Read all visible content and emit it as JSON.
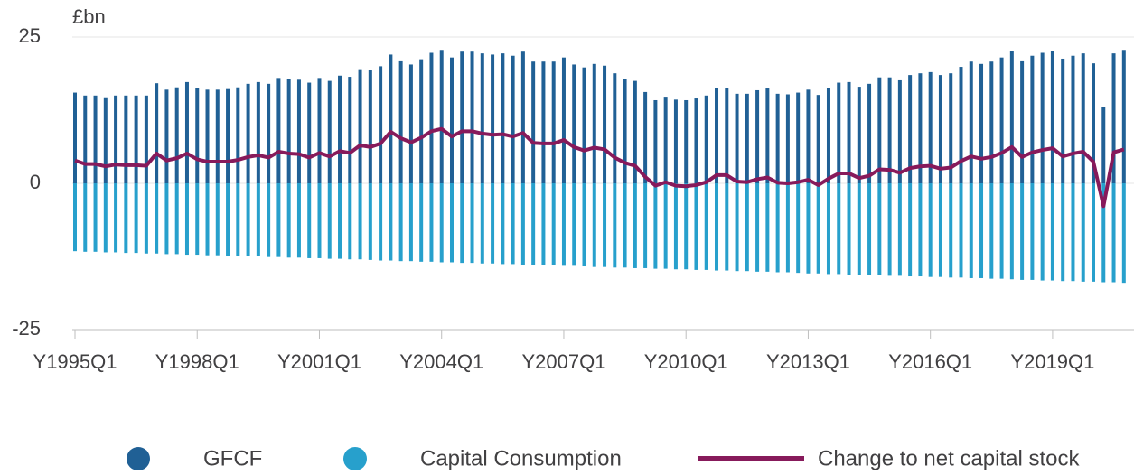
{
  "chart_data": {
    "type": "bar",
    "y_label": "£bn",
    "categories": [
      "Y1995Q1",
      null,
      null,
      null,
      null,
      null,
      null,
      null,
      null,
      null,
      null,
      null,
      "Y1998Q1",
      null,
      null,
      null,
      null,
      null,
      null,
      null,
      null,
      null,
      null,
      null,
      "Y2001Q1",
      null,
      null,
      null,
      null,
      null,
      null,
      null,
      null,
      null,
      null,
      null,
      "Y2004Q1",
      null,
      null,
      null,
      null,
      null,
      null,
      null,
      null,
      null,
      null,
      null,
      "Y2007Q1",
      null,
      null,
      null,
      null,
      null,
      null,
      null,
      null,
      null,
      null,
      null,
      "Y2010Q1",
      null,
      null,
      null,
      null,
      null,
      null,
      null,
      null,
      null,
      null,
      null,
      "Y2013Q1",
      null,
      null,
      null,
      null,
      null,
      null,
      null,
      null,
      null,
      null,
      null,
      "Y2016Q1",
      null,
      null,
      null,
      null,
      null,
      null,
      null,
      null,
      null,
      null,
      null,
      "Y2019Q1",
      null,
      null,
      null,
      null,
      null,
      null,
      null
    ],
    "series": [
      {
        "name": "GFCF",
        "type": "bar",
        "color": "#206095",
        "values": [
          15.5,
          15.0,
          15.0,
          14.7,
          15.0,
          15.0,
          15.0,
          15.0,
          17.1,
          16.0,
          16.4,
          17.3,
          16.3,
          16.0,
          16.0,
          16.1,
          16.4,
          17.0,
          17.3,
          17.0,
          18.0,
          17.8,
          17.7,
          17.2,
          18.0,
          17.5,
          18.4,
          18.2,
          19.5,
          19.3,
          20.0,
          22.0,
          21.0,
          20.3,
          21.2,
          22.3,
          22.8,
          21.5,
          22.5,
          22.5,
          22.2,
          22.0,
          22.2,
          21.8,
          22.5,
          20.8,
          20.8,
          20.8,
          21.5,
          20.3,
          19.8,
          20.4,
          20.1,
          18.8,
          17.9,
          17.5,
          15.6,
          14.2,
          14.8,
          14.3,
          14.2,
          14.5,
          15.0,
          16.3,
          16.3,
          15.3,
          15.3,
          15.9,
          16.2,
          15.3,
          15.2,
          15.5,
          16.0,
          15.1,
          16.3,
          17.2,
          17.3,
          16.5,
          17.0,
          18.1,
          18.1,
          17.6,
          18.5,
          18.8,
          19.0,
          18.5,
          18.8,
          19.9,
          20.8,
          20.4,
          20.8,
          21.5,
          22.6,
          21.0,
          21.8,
          22.3,
          22.6,
          21.3,
          21.8,
          22.2,
          20.5,
          13.0,
          22.2,
          22.8
        ]
      },
      {
        "name": "Capital Consumption",
        "type": "bar",
        "color": "#27a0cc",
        "values": [
          -11.6,
          -11.7,
          -11.7,
          -11.8,
          -11.8,
          -11.9,
          -11.9,
          -12.0,
          -12.0,
          -12.1,
          -12.1,
          -12.2,
          -12.2,
          -12.3,
          -12.3,
          -12.4,
          -12.4,
          -12.5,
          -12.5,
          -12.6,
          -12.6,
          -12.7,
          -12.7,
          -12.8,
          -12.8,
          -12.9,
          -12.9,
          -13.0,
          -13.0,
          -13.1,
          -13.2,
          -13.2,
          -13.3,
          -13.3,
          -13.4,
          -13.4,
          -13.5,
          -13.5,
          -13.6,
          -13.6,
          -13.7,
          -13.7,
          -13.8,
          -13.8,
          -13.9,
          -13.9,
          -14.0,
          -14.0,
          -14.1,
          -14.1,
          -14.2,
          -14.3,
          -14.3,
          -14.4,
          -14.4,
          -14.5,
          -14.5,
          -14.6,
          -14.6,
          -14.7,
          -14.7,
          -14.8,
          -14.8,
          -14.9,
          -14.9,
          -15.0,
          -15.0,
          -15.1,
          -15.1,
          -15.2,
          -15.2,
          -15.3,
          -15.4,
          -15.4,
          -15.5,
          -15.5,
          -15.6,
          -15.6,
          -15.7,
          -15.7,
          -15.8,
          -15.8,
          -15.9,
          -15.9,
          -16.0,
          -16.0,
          -16.1,
          -16.1,
          -16.2,
          -16.2,
          -16.3,
          -16.3,
          -16.4,
          -16.5,
          -16.5,
          -16.6,
          -16.6,
          -16.7,
          -16.7,
          -16.8,
          -16.8,
          -16.9,
          -16.9,
          -17.0
        ]
      },
      {
        "name": "Change to net capital stock",
        "type": "line",
        "color": "#871a5b",
        "values": [
          3.9,
          3.3,
          3.3,
          2.9,
          3.2,
          3.1,
          3.1,
          3.0,
          5.1,
          3.9,
          4.3,
          5.1,
          4.1,
          3.7,
          3.7,
          3.7,
          4.0,
          4.5,
          4.8,
          4.4,
          5.4,
          5.1,
          5.0,
          4.4,
          5.2,
          4.6,
          5.5,
          5.2,
          6.5,
          6.2,
          6.8,
          8.8,
          7.7,
          7.0,
          7.8,
          8.9,
          9.3,
          8.0,
          8.9,
          8.9,
          8.5,
          8.3,
          8.4,
          8.0,
          8.6,
          6.9,
          6.8,
          6.8,
          7.4,
          6.2,
          5.6,
          6.1,
          5.8,
          4.4,
          3.5,
          3.0,
          1.1,
          -0.4,
          0.2,
          -0.4,
          -0.5,
          -0.3,
          0.2,
          1.4,
          1.4,
          0.3,
          0.2,
          0.7,
          1.0,
          0.1,
          0.0,
          0.2,
          0.6,
          -0.3,
          0.8,
          1.7,
          1.7,
          0.9,
          1.3,
          2.4,
          2.3,
          1.8,
          2.6,
          2.9,
          3.0,
          2.5,
          2.7,
          3.8,
          4.6,
          4.2,
          4.5,
          5.2,
          6.2,
          4.5,
          5.3,
          5.7,
          6.0,
          4.6,
          5.1,
          5.4,
          3.7,
          -3.9,
          5.3,
          5.8
        ]
      }
    ],
    "ylim": [
      -25,
      25
    ],
    "yticks": [
      -25,
      0,
      25
    ],
    "grid": true,
    "legend": "bottom"
  }
}
